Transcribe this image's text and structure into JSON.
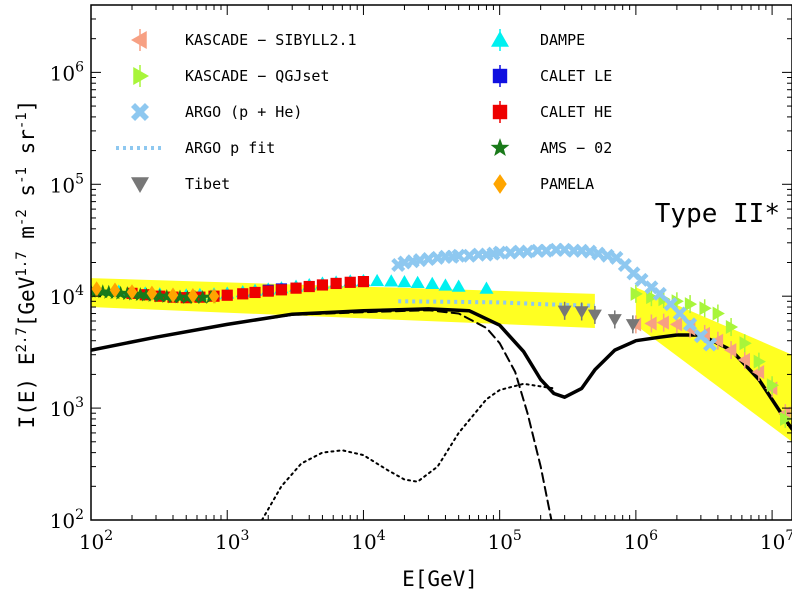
{
  "chart_data": {
    "type": "scatter",
    "xscale": "log",
    "yscale": "log",
    "xlim": [
      100,
      14000000
    ],
    "ylim": [
      100,
      4000000
    ],
    "xlabel": "E[GeV]",
    "ylabel": "I(E) E^2.7[GeV^1.7 m^-2 s^-1 sr^-1]",
    "x_ticks": [
      {
        "v": 100,
        "b": "10",
        "e": "2"
      },
      {
        "v": 1000,
        "b": "10",
        "e": "3"
      },
      {
        "v": 10000,
        "b": "10",
        "e": "4"
      },
      {
        "v": 100000,
        "b": "10",
        "e": "5"
      },
      {
        "v": 1000000,
        "b": "10",
        "e": "6"
      },
      {
        "v": 10000000,
        "b": "10",
        "e": "7"
      }
    ],
    "y_ticks": [
      {
        "v": 100,
        "b": "10",
        "e": "2"
      },
      {
        "v": 1000,
        "b": "10",
        "e": "3"
      },
      {
        "v": 10000,
        "b": "10",
        "e": "4"
      },
      {
        "v": 100000,
        "b": "10",
        "e": "5"
      },
      {
        "v": 1000000,
        "b": "10",
        "e": "6"
      }
    ],
    "annotation": "Type II*",
    "bands": [
      {
        "x": [
          100,
          500000
        ],
        "lower": [
          8000,
          5200
        ],
        "upper": [
          14500,
          10500
        ],
        "color": "#ffff22"
      },
      {
        "x": [
          1000000,
          14000000
        ],
        "lower": [
          5500,
          500
        ],
        "upper": [
          12000,
          3000
        ],
        "color": "#ffff22"
      }
    ],
    "curves": [
      {
        "style": "solid",
        "color": "#000000",
        "width": 3.5,
        "points": [
          [
            100,
            3300
          ],
          [
            300,
            4300
          ],
          [
            1000,
            5600
          ],
          [
            3000,
            6900
          ],
          [
            10000,
            7400
          ],
          [
            30000,
            7700
          ],
          [
            60000,
            7400
          ],
          [
            100000,
            5500
          ],
          [
            150000,
            3200
          ],
          [
            200000,
            1800
          ],
          [
            250000,
            1350
          ],
          [
            300000,
            1250
          ],
          [
            400000,
            1500
          ],
          [
            500000,
            2200
          ],
          [
            700000,
            3300
          ],
          [
            1000000,
            4000
          ],
          [
            1500000,
            4300
          ],
          [
            2000000,
            4500
          ],
          [
            3000000,
            4500
          ],
          [
            5000000,
            3300
          ],
          [
            8000000,
            1800
          ],
          [
            12000000,
            850
          ],
          [
            14000000,
            650
          ]
        ]
      },
      {
        "style": "dashed",
        "color": "#000000",
        "width": 2,
        "points": [
          [
            100,
            3300
          ],
          [
            300,
            4300
          ],
          [
            1000,
            5600
          ],
          [
            3000,
            6800
          ],
          [
            10000,
            7200
          ],
          [
            30000,
            7500
          ],
          [
            50000,
            7000
          ],
          [
            80000,
            5200
          ],
          [
            100000,
            3800
          ],
          [
            130000,
            2100
          ],
          [
            160000,
            900
          ],
          [
            200000,
            300
          ],
          [
            240000,
            100
          ]
        ]
      },
      {
        "style": "dotted",
        "color": "#000000",
        "width": 2,
        "points": [
          [
            1800,
            100
          ],
          [
            2500,
            200
          ],
          [
            3500,
            320
          ],
          [
            5000,
            400
          ],
          [
            7000,
            420
          ],
          [
            10000,
            380
          ],
          [
            15000,
            280
          ],
          [
            20000,
            230
          ],
          [
            25000,
            220
          ],
          [
            35000,
            300
          ],
          [
            50000,
            600
          ],
          [
            80000,
            1200
          ],
          [
            100000,
            1450
          ],
          [
            150000,
            1650
          ],
          [
            250000,
            1500
          ]
        ]
      }
    ],
    "series": [
      {
        "name": "KASCADE − SIBYLL2.1",
        "marker": "tri-left",
        "color": "#f7a083",
        "points": [
          [
            1000000,
            5600
          ],
          [
            1300000,
            5700
          ],
          [
            1600000,
            5800
          ],
          [
            2000000,
            5600
          ],
          [
            2500000,
            5100
          ],
          [
            3200000,
            4600
          ],
          [
            4000000,
            4000
          ],
          [
            5000000,
            3300
          ],
          [
            6300000,
            2700
          ],
          [
            8000000,
            2100
          ],
          [
            10000000,
            1500
          ],
          [
            12500000,
            900
          ]
        ]
      },
      {
        "name": "KASCADE − QGJset",
        "marker": "tri-right",
        "color": "#a8f53a",
        "points": [
          [
            1000000,
            10500
          ],
          [
            1300000,
            9800
          ],
          [
            1600000,
            9400
          ],
          [
            2000000,
            9000
          ],
          [
            2500000,
            8500
          ],
          [
            3200000,
            7800
          ],
          [
            4000000,
            7000
          ],
          [
            5000000,
            5300
          ],
          [
            6300000,
            3800
          ],
          [
            8000000,
            2600
          ],
          [
            10000000,
            1600
          ],
          [
            12500000,
            800
          ]
        ]
      },
      {
        "name": "ARGO (p + He)",
        "marker": "x",
        "color": "#8ec8f0",
        "points": [
          [
            18000,
            19000
          ],
          [
            20000,
            20000
          ],
          [
            23000,
            20500
          ],
          [
            26000,
            21000
          ],
          [
            30000,
            21500
          ],
          [
            35000,
            22000
          ],
          [
            40000,
            22500
          ],
          [
            45000,
            22500
          ],
          [
            50000,
            23000
          ],
          [
            60000,
            23000
          ],
          [
            70000,
            23500
          ],
          [
            80000,
            23500
          ],
          [
            90000,
            24000
          ],
          [
            100000,
            24500
          ],
          [
            120000,
            24500
          ],
          [
            140000,
            25000
          ],
          [
            160000,
            25000
          ],
          [
            190000,
            25500
          ],
          [
            220000,
            25500
          ],
          [
            260000,
            26000
          ],
          [
            300000,
            26000
          ],
          [
            350000,
            25500
          ],
          [
            400000,
            25500
          ],
          [
            460000,
            25000
          ],
          [
            530000,
            24000
          ],
          [
            620000,
            23000
          ],
          [
            720000,
            22000
          ],
          [
            830000,
            19000
          ],
          [
            960000,
            16000
          ],
          [
            1100000,
            14000
          ],
          [
            1300000,
            12000
          ],
          [
            1500000,
            10500
          ],
          [
            1800000,
            8500
          ],
          [
            2100000,
            7000
          ],
          [
            2500000,
            5600
          ],
          [
            3000000,
            4400
          ],
          [
            3500000,
            3700
          ]
        ]
      },
      {
        "name": "ARGO p fit",
        "marker": "dotted-line",
        "color": "#8ec8f0",
        "points": [
          [
            18000,
            9000
          ],
          [
            50000,
            8900
          ],
          [
            100000,
            8800
          ],
          [
            200000,
            8500
          ],
          [
            500000,
            8200
          ]
        ]
      },
      {
        "name": "Tibet",
        "marker": "tri-down",
        "color": "#777777",
        "points": [
          [
            300000,
            7400
          ],
          [
            400000,
            7300
          ],
          [
            500000,
            6800
          ],
          [
            700000,
            6200
          ],
          [
            950000,
            5600
          ]
        ]
      },
      {
        "name": "DAMPE",
        "marker": "tri-up",
        "color": "#00f0f0",
        "points": [
          [
            160,
            11000
          ],
          [
            200,
            10800
          ],
          [
            250,
            10600
          ],
          [
            320,
            10400
          ],
          [
            400,
            10300
          ],
          [
            500,
            10200
          ],
          [
            630,
            10300
          ],
          [
            800,
            10400
          ],
          [
            1000,
            10600
          ],
          [
            1300,
            10900
          ],
          [
            1600,
            11200
          ],
          [
            2000,
            11500
          ],
          [
            2500,
            11800
          ],
          [
            3200,
            12200
          ],
          [
            4000,
            12600
          ],
          [
            5000,
            13000
          ],
          [
            6300,
            13300
          ],
          [
            8000,
            13600
          ],
          [
            10000,
            13700
          ],
          [
            12600,
            13700
          ],
          [
            16000,
            13600
          ],
          [
            20000,
            13400
          ],
          [
            25000,
            13200
          ],
          [
            32000,
            12900
          ],
          [
            40000,
            12500
          ],
          [
            50000,
            12200
          ],
          [
            80000,
            11700
          ]
        ]
      },
      {
        "name": "CALET LE",
        "marker": "square",
        "color": "#1010e0",
        "points": [
          [
            2000,
            11300
          ],
          [
            2500,
            11600
          ]
        ]
      },
      {
        "name": "CALET HE",
        "marker": "square",
        "color": "#ee0000",
        "points": [
          [
            200,
            10600
          ],
          [
            250,
            10300
          ],
          [
            320,
            10000
          ],
          [
            400,
            9800
          ],
          [
            500,
            9700
          ],
          [
            630,
            9800
          ],
          [
            800,
            10000
          ],
          [
            1000,
            10200
          ],
          [
            1300,
            10500
          ],
          [
            1600,
            10800
          ],
          [
            2000,
            11100
          ],
          [
            2500,
            11400
          ],
          [
            3200,
            11800
          ],
          [
            4000,
            12200
          ],
          [
            5000,
            12600
          ],
          [
            6300,
            13000
          ],
          [
            8000,
            13300
          ],
          [
            10000,
            13500
          ]
        ]
      },
      {
        "name": "AMS − 02",
        "marker": "star",
        "color": "#1a7a1a",
        "points": [
          [
            100,
            11000
          ],
          [
            110,
            11000
          ],
          [
            122,
            10900
          ],
          [
            135,
            10800
          ],
          [
            150,
            10700
          ],
          [
            165,
            10600
          ],
          [
            185,
            10500
          ],
          [
            205,
            10400
          ],
          [
            230,
            10300
          ],
          [
            255,
            10200
          ],
          [
            285,
            10100
          ],
          [
            320,
            10000
          ],
          [
            360,
            9900
          ],
          [
            400,
            9800
          ],
          [
            450,
            9800
          ],
          [
            510,
            9700
          ],
          [
            580,
            9700
          ],
          [
            660,
            9700
          ],
          [
            760,
            9800
          ]
        ]
      },
      {
        "name": "PAMELA",
        "marker": "diamond",
        "color": "#ffa500",
        "points": [
          [
            110,
            11600
          ],
          [
            150,
            11300
          ],
          [
            200,
            10900
          ],
          [
            280,
            10600
          ],
          [
            400,
            10200
          ],
          [
            560,
            10100
          ],
          [
            800,
            10000
          ]
        ]
      }
    ],
    "legend_columns": [
      [
        "KASCADE − SIBYLL2.1",
        "KASCADE − QGJset",
        "ARGO (p + He)",
        "ARGO p fit",
        "Tibet"
      ],
      [
        "DAMPE",
        "CALET LE",
        "CALET HE",
        "AMS − 02",
        "PAMELA"
      ]
    ]
  }
}
